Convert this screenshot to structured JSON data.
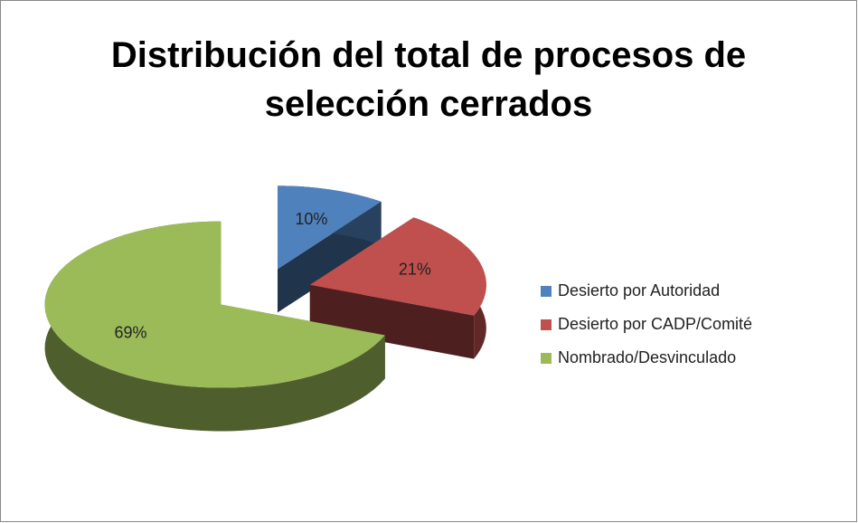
{
  "chart_data": {
    "type": "pie3d",
    "title": "Distribución del total de procesos de selección cerrados",
    "categories": [
      "Desierto por Autoridad",
      "Desierto por CADP/Comité",
      "Nombrado/Desvinculado"
    ],
    "values": [
      10,
      21,
      69
    ],
    "value_labels": [
      "10%",
      "21%",
      "69%"
    ],
    "colors": [
      "#4f81bd",
      "#c0504d",
      "#9bbb59"
    ],
    "legend": "right"
  }
}
